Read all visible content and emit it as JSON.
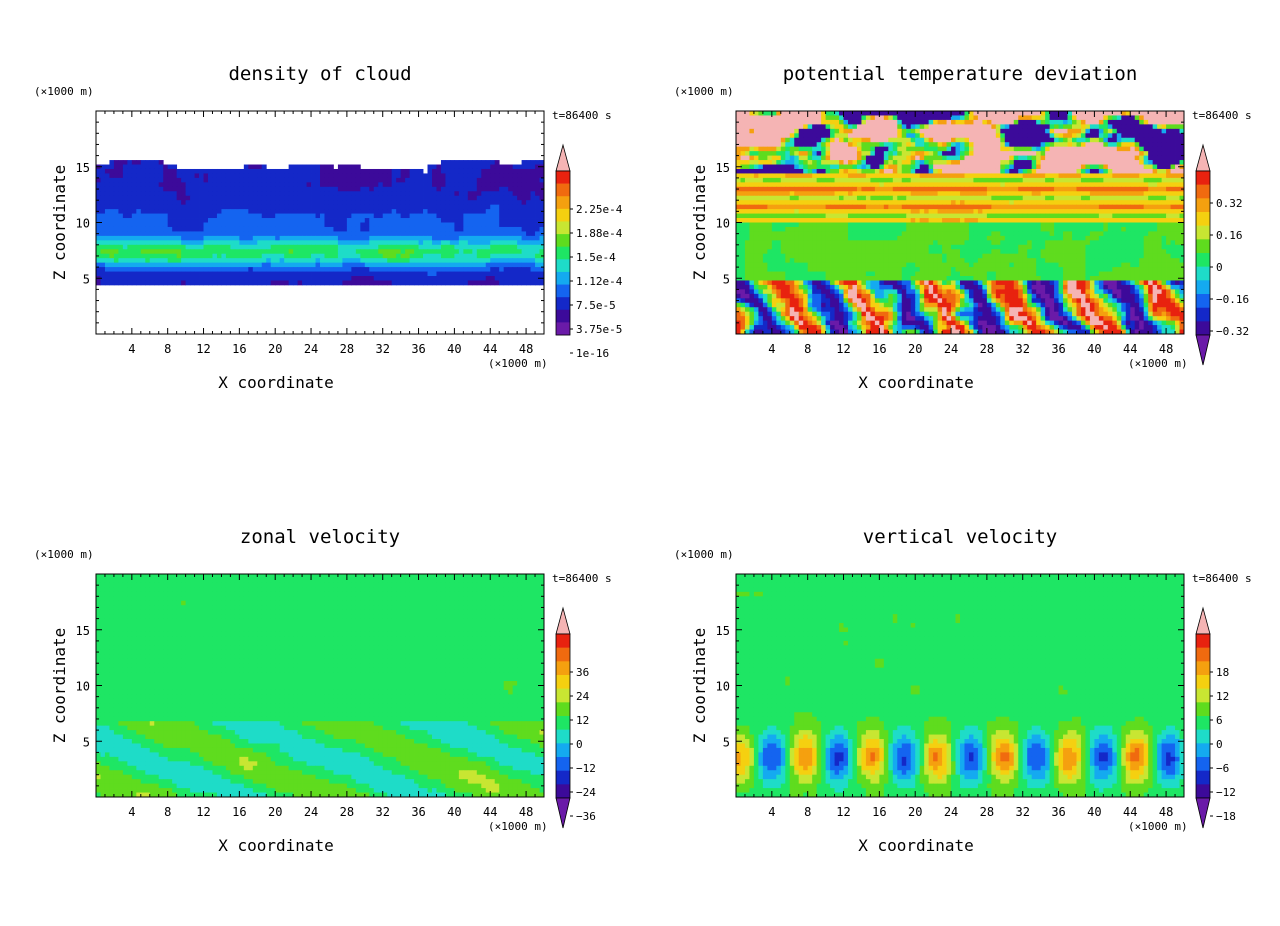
{
  "chart_data": [
    {
      "type": "heatmap",
      "id": "cloud",
      "title": "density of cloud",
      "xlabel": "X coordinate",
      "ylabel": "Z coordinate",
      "x_unit": "(×1000 m)",
      "y_unit": "(×1000 m)",
      "time_label": "t=86400 s",
      "xlim": [
        0,
        50
      ],
      "ylim": [
        0,
        20
      ],
      "x_ticks": [
        4,
        8,
        12,
        16,
        20,
        24,
        28,
        32,
        36,
        40,
        44,
        48
      ],
      "y_ticks": [
        5,
        10,
        15
      ],
      "colorbar": {
        "labels": [
          "2.25e-4",
          "1.88e-4",
          "1.5e-4",
          "1.12e-4",
          "7.5e-5",
          "3.75e-5",
          "1e-16"
        ],
        "colors": [
          "#f5b4b4",
          "#e8220f",
          "#f06a0f",
          "#f5a00f",
          "#f5d010",
          "#c8e632",
          "#5fdc1e",
          "#1ee664",
          "#1edcc8",
          "#14aaf0",
          "#1464f0",
          "#1428c8",
          "#3c0a9a",
          "#6a1aa8"
        ],
        "extend": "max"
      }
    },
    {
      "type": "heatmap",
      "id": "theta",
      "title": "potential temperature deviation",
      "xlabel": "X coordinate",
      "ylabel": "Z coordinate",
      "x_unit": "(×1000 m)",
      "y_unit": "(×1000 m)",
      "time_label": "t=86400 s",
      "xlim": [
        0,
        50
      ],
      "ylim": [
        0,
        20
      ],
      "x_ticks": [
        4,
        8,
        12,
        16,
        20,
        24,
        28,
        32,
        36,
        40,
        44,
        48
      ],
      "y_ticks": [
        5,
        10,
        15
      ],
      "colorbar": {
        "labels": [
          "0.32",
          "0.16",
          "0",
          "−0.16",
          "−0.32"
        ],
        "colors": [
          "#f5b4b4",
          "#e8220f",
          "#f06a0f",
          "#f5a00f",
          "#f5d010",
          "#c8e632",
          "#5fdc1e",
          "#1ee664",
          "#1edcc8",
          "#14aaf0",
          "#1464f0",
          "#1428c8",
          "#3c0a9a",
          "#6a1aa8"
        ],
        "extend": "both"
      }
    },
    {
      "type": "heatmap",
      "id": "u",
      "title": "zonal velocity",
      "xlabel": "X coordinate",
      "ylabel": "Z coordinate",
      "x_unit": "(×1000 m)",
      "y_unit": "(×1000 m)",
      "time_label": "t=86400 s",
      "xlim": [
        0,
        50
      ],
      "ylim": [
        0,
        20
      ],
      "x_ticks": [
        4,
        8,
        12,
        16,
        20,
        24,
        28,
        32,
        36,
        40,
        44,
        48
      ],
      "y_ticks": [
        5,
        10,
        15
      ],
      "colorbar": {
        "labels": [
          "36",
          "24",
          "12",
          "0",
          "−12",
          "−24",
          "−36"
        ],
        "colors": [
          "#f5b4b4",
          "#e8220f",
          "#f06a0f",
          "#f5a00f",
          "#f5d010",
          "#c8e632",
          "#5fdc1e",
          "#1ee664",
          "#1edcc8",
          "#14aaf0",
          "#1464f0",
          "#1428c8",
          "#3c0a9a",
          "#6a1aa8"
        ],
        "extend": "both"
      }
    },
    {
      "type": "heatmap",
      "id": "w",
      "title": "vertical velocity",
      "xlabel": "X coordinate",
      "ylabel": "Z coordinate",
      "x_unit": "(×1000 m)",
      "y_unit": "(×1000 m)",
      "time_label": "t=86400 s",
      "xlim": [
        0,
        50
      ],
      "ylim": [
        0,
        20
      ],
      "x_ticks": [
        4,
        8,
        12,
        16,
        20,
        24,
        28,
        32,
        36,
        40,
        44,
        48
      ],
      "y_ticks": [
        5,
        10,
        15
      ],
      "colorbar": {
        "labels": [
          "18",
          "12",
          "6",
          "0",
          "−6",
          "−12",
          "−18"
        ],
        "colors": [
          "#f5b4b4",
          "#e8220f",
          "#f06a0f",
          "#f5a00f",
          "#f5d010",
          "#c8e632",
          "#5fdc1e",
          "#1ee664",
          "#1edcc8",
          "#14aaf0",
          "#1464f0",
          "#1428c8",
          "#3c0a9a",
          "#6a1aa8"
        ],
        "extend": "both"
      }
    }
  ]
}
